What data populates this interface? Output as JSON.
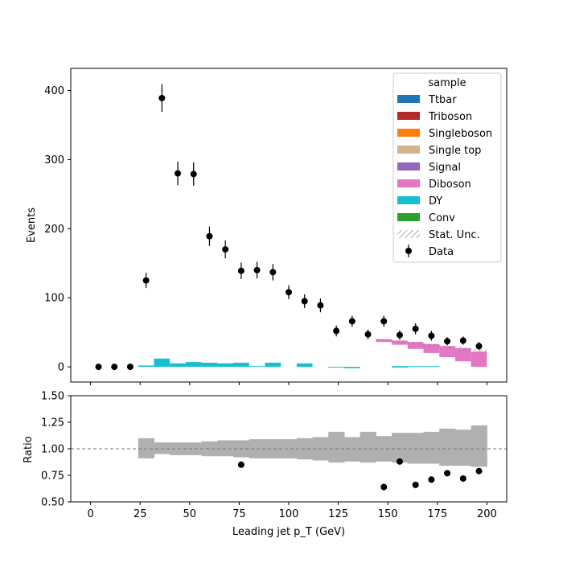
{
  "chart_data": [
    {
      "panel": "main",
      "type": "bar",
      "xlabel": "Leading jet  p_T (GeV)",
      "ylabel": "Events",
      "xlim": [
        -10,
        210
      ],
      "ylim": [
        -22,
        432
      ],
      "yticks": [
        0,
        100,
        200,
        300,
        400
      ],
      "legend": {
        "title": "sample",
        "placement": "top-right",
        "entries": [
          {
            "label": "Ttbar",
            "color": "#1f77b4",
            "kind": "patch"
          },
          {
            "label": "Triboson",
            "color": "#b22a2a",
            "kind": "patch"
          },
          {
            "label": "Singleboson",
            "color": "#ff7f0e",
            "kind": "patch"
          },
          {
            "label": "Single top",
            "color": "#d2b48c",
            "kind": "patch"
          },
          {
            "label": "Signal",
            "color": "#9467bd",
            "kind": "patch"
          },
          {
            "label": "Diboson",
            "color": "#e377c2",
            "kind": "patch"
          },
          {
            "label": "DY",
            "color": "#17becf",
            "kind": "patch"
          },
          {
            "label": "Conv",
            "color": "#2ca02c",
            "kind": "patch"
          },
          {
            "label": "Stat. Unc.",
            "color": "#888888",
            "kind": "hatch"
          },
          {
            "label": "Data",
            "color": "#000000",
            "kind": "errorbar"
          }
        ]
      },
      "bin_edges": [
        0,
        8,
        16,
        24,
        32,
        40,
        48,
        56,
        64,
        72,
        80,
        88,
        96,
        104,
        112,
        120,
        128,
        136,
        144,
        152,
        160,
        168,
        176,
        184,
        192,
        200
      ],
      "stack": [
        {
          "name": "DY",
          "color": "#17becf",
          "lows": [
            0,
            0,
            0,
            0,
            0,
            0,
            0,
            0,
            0,
            0,
            0,
            0,
            0,
            0,
            0,
            0,
            -2,
            0,
            0,
            -1,
            0,
            0,
            0,
            0,
            0
          ],
          "highs": [
            0,
            0,
            0,
            2,
            12,
            5,
            7,
            6,
            5,
            6,
            1,
            6,
            0,
            5,
            0,
            -1,
            0,
            0,
            0,
            1,
            1,
            1,
            0,
            0,
            0
          ]
        },
        {
          "name": "Diboson",
          "color": "#e377c2",
          "lows": [
            0,
            0,
            0,
            0,
            0,
            0,
            0,
            0,
            0,
            0,
            0,
            0,
            0,
            0,
            0,
            0,
            0,
            0,
            36,
            32,
            26,
            20,
            14,
            8,
            0
          ],
          "highs": [
            0,
            0,
            0,
            0,
            0,
            0,
            0,
            0,
            0,
            0,
            0,
            0,
            0,
            0,
            0,
            0,
            0,
            0,
            40,
            38,
            36,
            33,
            30,
            27,
            22
          ]
        }
      ],
      "stat_unc_band": {
        "x": [
          144,
          200
        ],
        "low": [
          39,
          21
        ],
        "high": [
          41,
          25
        ]
      },
      "data_points": {
        "x": [
          4,
          12,
          20,
          28,
          36,
          44,
          52,
          60,
          68,
          76,
          84,
          92,
          100,
          108,
          116,
          124,
          132,
          140,
          148,
          156,
          164,
          172,
          180,
          188,
          196
        ],
        "y": [
          0,
          0,
          0,
          125,
          389,
          280,
          279,
          189,
          170,
          139,
          140,
          137,
          108,
          95,
          89,
          52,
          66,
          47,
          66,
          46,
          55,
          45,
          37,
          38,
          30
        ],
        "err": [
          1,
          1,
          1,
          11,
          20,
          17,
          17,
          14,
          13,
          12,
          12,
          12,
          10,
          10,
          10,
          8,
          8,
          7,
          8,
          7,
          8,
          7,
          6,
          6,
          6
        ]
      }
    },
    {
      "panel": "ratio",
      "type": "scatter",
      "xlabel": "Leading jet  p_T (GeV)",
      "ylabel": "Ratio",
      "xlim": [
        -10,
        210
      ],
      "ylim": [
        0.5,
        1.5
      ],
      "xticks": [
        0,
        25,
        50,
        75,
        100,
        125,
        150,
        175,
        200
      ],
      "yticks": [
        0.5,
        0.75,
        1.0,
        1.25,
        1.5
      ],
      "ytick_labels": [
        "0.50",
        "0.75",
        "1.00",
        "1.25",
        "1.50"
      ],
      "reference_line": 1.0,
      "unc_band": {
        "bin_edges": [
          24,
          32,
          40,
          48,
          56,
          64,
          72,
          80,
          88,
          96,
          104,
          112,
          120,
          128,
          136,
          144,
          152,
          160,
          168,
          176,
          184,
          192,
          200
        ],
        "lows": [
          0.91,
          0.95,
          0.94,
          0.94,
          0.93,
          0.93,
          0.92,
          0.91,
          0.91,
          0.91,
          0.9,
          0.89,
          0.87,
          0.88,
          0.87,
          0.88,
          0.87,
          0.86,
          0.86,
          0.84,
          0.84,
          0.83
        ],
        "highs": [
          1.1,
          1.06,
          1.06,
          1.06,
          1.07,
          1.08,
          1.08,
          1.09,
          1.09,
          1.09,
          1.1,
          1.11,
          1.16,
          1.11,
          1.16,
          1.12,
          1.15,
          1.15,
          1.16,
          1.19,
          1.18,
          1.22
        ]
      },
      "points": {
        "x": [
          76,
          148,
          156,
          164,
          172,
          180,
          188,
          196
        ],
        "y": [
          0.85,
          0.64,
          0.88,
          0.66,
          0.71,
          0.77,
          0.72,
          0.79
        ]
      }
    }
  ]
}
